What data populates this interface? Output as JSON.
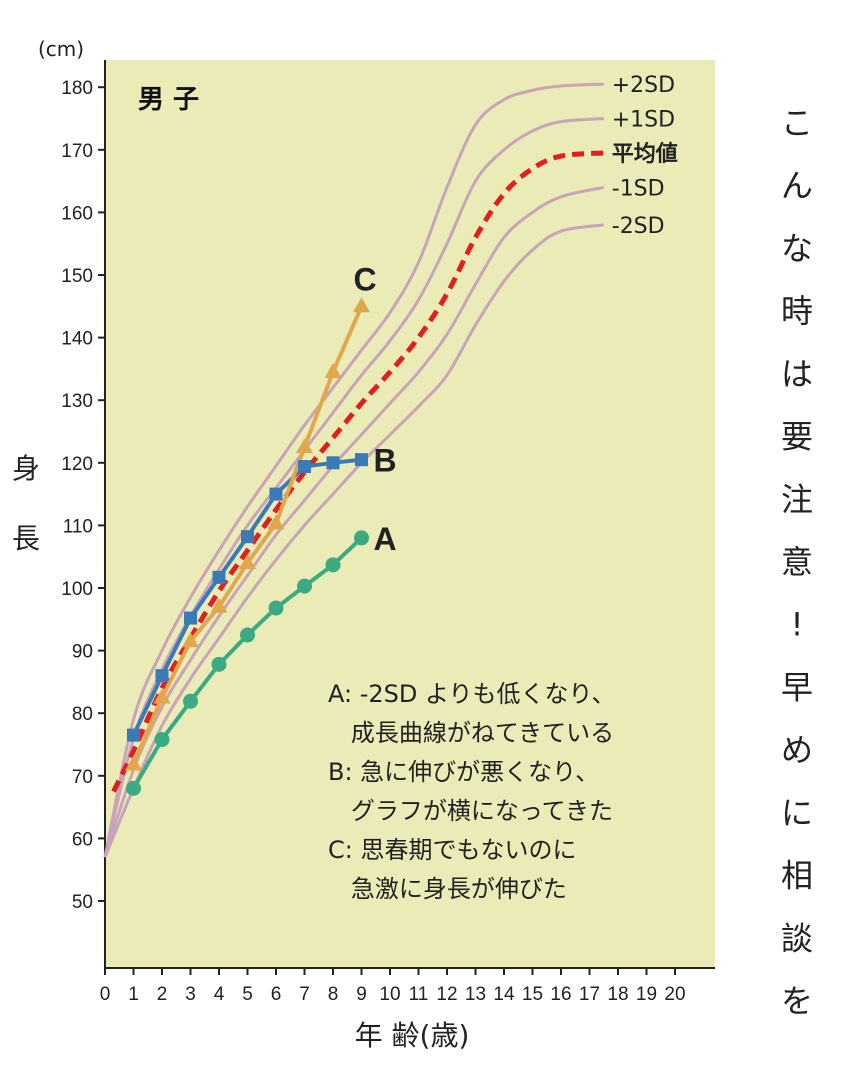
{
  "panel_title": "男 子",
  "y_unit": "(cm)",
  "y_label": [
    "身",
    "長"
  ],
  "x_label": "年 齢(歳)",
  "side_text": "こんな時は要注意!早めに相談を",
  "notes": [
    "A: -2SD よりも低くなり、",
    "   成長曲線がねてきている",
    "B: 急に伸びが悪くなり、",
    "   グラフが横になってきた",
    "C: 思春期でもないのに",
    "   急激に身長が伸びた"
  ],
  "colors": {
    "background": "#ebebb8",
    "sd_curves": "#c9a3b8",
    "mean_curve": "#e0201f",
    "series_A": "#3aaa82",
    "series_B": "#3a7bb5",
    "series_C": "#e0a74c"
  },
  "chart_data": {
    "type": "line",
    "xlabel": "年 齢(歳)",
    "ylabel": "身長",
    "xlim": [
      0,
      21
    ],
    "ylim": [
      40,
      184
    ],
    "x_ticks": [
      0,
      1,
      2,
      3,
      4,
      5,
      6,
      7,
      8,
      9,
      10,
      11,
      12,
      13,
      14,
      15,
      16,
      17,
      18,
      19,
      20
    ],
    "y_ticks": [
      50,
      60,
      70,
      80,
      90,
      100,
      110,
      120,
      130,
      140,
      150,
      160,
      170,
      180
    ],
    "grid": false,
    "reference_curves": [
      {
        "name": "+2SD",
        "style": "solid",
        "x": [
          0,
          1,
          2,
          3,
          4,
          5,
          6,
          7,
          8,
          9,
          10,
          11,
          12,
          13,
          14,
          15,
          16,
          17.5
        ],
        "y": [
          57,
          79,
          90,
          98.5,
          106,
          113,
          119.5,
          126,
          132,
          138,
          144,
          152,
          164,
          174,
          178,
          179.5,
          180.2,
          180.5
        ]
      },
      {
        "name": "+1SD",
        "style": "solid",
        "x": [
          0,
          1,
          2,
          3,
          4,
          5,
          6,
          7,
          8,
          9,
          10,
          11,
          12,
          13,
          14,
          15,
          16,
          17.5
        ],
        "y": [
          57,
          76,
          87,
          95.5,
          103,
          110,
          116,
          122,
          128,
          134,
          139.5,
          146,
          155,
          165,
          170,
          173,
          174.5,
          175
        ]
      },
      {
        "name": "平均値",
        "style": "dashed",
        "x": [
          0.3,
          1,
          2,
          3,
          4,
          5,
          6,
          7,
          8,
          9,
          10,
          11,
          12,
          13,
          14,
          15,
          16,
          17.5
        ],
        "y": [
          67.5,
          74,
          84,
          92,
          99.5,
          106,
          112.5,
          118.5,
          124,
          129.5,
          134.5,
          140,
          147,
          156,
          163,
          167,
          169,
          169.5
        ]
      },
      {
        "name": "-1SD",
        "style": "solid",
        "x": [
          0,
          1,
          2,
          3,
          4,
          5,
          6,
          7,
          8,
          9,
          10,
          11,
          12,
          13,
          14,
          15,
          16,
          17.5
        ],
        "y": [
          57,
          71,
          81,
          88.5,
          95.5,
          102,
          108.5,
          114,
          119.5,
          124.5,
          129.5,
          134.5,
          140.5,
          148.5,
          156,
          160,
          162.5,
          164
        ]
      },
      {
        "name": "-2SD",
        "style": "solid",
        "x": [
          0,
          1,
          2,
          3,
          4,
          5,
          6,
          7,
          8,
          9,
          10,
          11,
          12,
          13,
          14,
          15,
          16,
          17.5
        ],
        "y": [
          57,
          68,
          78,
          85.5,
          92,
          98.5,
          104.5,
          110,
          115,
          120,
          124.5,
          129,
          134,
          142,
          149,
          154,
          157,
          158
        ]
      }
    ],
    "series": [
      {
        "name": "A",
        "marker": "circle",
        "x": [
          1,
          2,
          3,
          4,
          5,
          6,
          7,
          8,
          9
        ],
        "y": [
          68,
          75.8,
          81.9,
          87.8,
          92.5,
          96.8,
          100.3,
          103.7,
          108
        ]
      },
      {
        "name": "B",
        "marker": "square",
        "x": [
          1,
          2,
          3,
          4,
          5,
          6,
          7,
          8,
          9
        ],
        "y": [
          76.5,
          86,
          95.2,
          101.7,
          108.2,
          115,
          119.4,
          120,
          120.5
        ]
      },
      {
        "name": "C",
        "marker": "triangle",
        "x": [
          1,
          2,
          3,
          4,
          5,
          6,
          7,
          8,
          9
        ],
        "y": [
          71.8,
          82.5,
          91.5,
          97,
          104,
          110.3,
          122.5,
          134.5,
          145
        ]
      }
    ]
  }
}
